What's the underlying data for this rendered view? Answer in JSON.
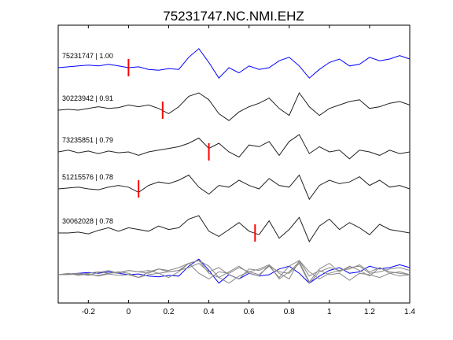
{
  "chart_data": {
    "type": "line",
    "title": "75231747.NC.NMI.EHZ",
    "xlabel": "",
    "ylabel": "",
    "xlim": [
      -0.35,
      1.4
    ],
    "x_ticks": [
      -0.2,
      0,
      0.2,
      0.4,
      0.6,
      0.8,
      1,
      1.2,
      1.4
    ],
    "x_tick_labels": [
      "-0.2",
      "0",
      "0.2",
      "0.4",
      "0.6",
      "0.8",
      "1",
      "1.2",
      "1.4"
    ],
    "grid": false,
    "colors": {
      "reference": "#0000ff",
      "trace": "#222222",
      "overlay": "#888888",
      "pick": "#ff0000"
    },
    "traces": [
      {
        "label": "75231747 | 1.00",
        "pick_time": 0.0,
        "color": "reference",
        "x": [
          -0.35,
          -0.3,
          -0.25,
          -0.2,
          -0.15,
          -0.1,
          -0.05,
          0.0,
          0.05,
          0.1,
          0.15,
          0.2,
          0.25,
          0.3,
          0.35,
          0.4,
          0.45,
          0.5,
          0.55,
          0.6,
          0.65,
          0.7,
          0.75,
          0.8,
          0.85,
          0.9,
          0.95,
          1.0,
          1.05,
          1.1,
          1.15,
          1.2,
          1.25,
          1.3,
          1.35,
          1.4
        ],
        "y": [
          0.0,
          0.05,
          0.1,
          0.15,
          0.1,
          0.2,
          0.1,
          0.0,
          0.05,
          -0.1,
          -0.15,
          -0.05,
          -0.1,
          0.6,
          1.1,
          0.3,
          -0.6,
          0.0,
          -0.3,
          0.1,
          -0.1,
          0.0,
          0.4,
          0.6,
          0.1,
          -0.6,
          -0.1,
          0.3,
          0.5,
          0.1,
          0.2,
          0.6,
          0.4,
          0.5,
          0.7,
          0.5
        ]
      },
      {
        "label": "30223942 | 0.91",
        "pick_time": 0.17,
        "color": "trace",
        "x": [
          -0.35,
          -0.3,
          -0.25,
          -0.2,
          -0.15,
          -0.1,
          -0.05,
          0.0,
          0.05,
          0.1,
          0.15,
          0.2,
          0.25,
          0.3,
          0.35,
          0.4,
          0.45,
          0.5,
          0.55,
          0.6,
          0.65,
          0.7,
          0.75,
          0.8,
          0.85,
          0.9,
          0.95,
          1.0,
          1.05,
          1.1,
          1.15,
          1.2,
          1.25,
          1.3,
          1.35,
          1.4
        ],
        "y": [
          0.0,
          0.05,
          0.0,
          0.1,
          0.2,
          0.1,
          0.15,
          0.3,
          0.2,
          0.3,
          0.1,
          -0.2,
          0.2,
          0.8,
          1.0,
          0.6,
          -0.2,
          -0.6,
          -0.1,
          0.2,
          0.4,
          0.7,
          0.1,
          -0.3,
          1.0,
          0.2,
          -0.3,
          0.1,
          0.3,
          0.5,
          0.6,
          0.1,
          0.2,
          0.4,
          0.5,
          0.3
        ]
      },
      {
        "label": "73235851 | 0.79",
        "pick_time": 0.4,
        "color": "trace",
        "x": [
          -0.35,
          -0.3,
          -0.25,
          -0.2,
          -0.15,
          -0.1,
          -0.05,
          0.0,
          0.05,
          0.1,
          0.15,
          0.2,
          0.25,
          0.3,
          0.35,
          0.4,
          0.45,
          0.5,
          0.55,
          0.6,
          0.65,
          0.7,
          0.75,
          0.8,
          0.85,
          0.9,
          0.95,
          1.0,
          1.05,
          1.1,
          1.15,
          1.2,
          1.25,
          1.3,
          1.35,
          1.4
        ],
        "y": [
          0.0,
          0.1,
          -0.05,
          0.05,
          -0.1,
          0.05,
          -0.05,
          0.0,
          -0.2,
          0.0,
          0.1,
          0.2,
          0.3,
          0.5,
          0.8,
          0.2,
          0.5,
          0.0,
          -0.3,
          0.4,
          0.3,
          0.6,
          -0.2,
          0.6,
          1.0,
          -0.1,
          0.3,
          0.0,
          0.1,
          -0.4,
          0.1,
          0.0,
          -0.2,
          0.1,
          -0.1,
          0.0
        ]
      },
      {
        "label": "51215576 | 0.78",
        "pick_time": 0.05,
        "color": "trace",
        "x": [
          -0.35,
          -0.3,
          -0.25,
          -0.2,
          -0.15,
          -0.1,
          -0.05,
          0.0,
          0.05,
          0.1,
          0.15,
          0.2,
          0.25,
          0.3,
          0.35,
          0.4,
          0.45,
          0.5,
          0.55,
          0.6,
          0.65,
          0.7,
          0.75,
          0.8,
          0.85,
          0.9,
          0.95,
          1.0,
          1.05,
          1.1,
          1.15,
          1.2,
          1.25,
          1.3,
          1.35,
          1.4
        ],
        "y": [
          0.0,
          0.05,
          0.1,
          0.0,
          -0.05,
          0.1,
          0.2,
          0.1,
          -0.2,
          0.2,
          0.4,
          0.3,
          0.5,
          0.8,
          0.1,
          -0.3,
          0.2,
          0.1,
          0.5,
          0.2,
          0.0,
          0.6,
          0.2,
          0.1,
          0.8,
          -0.6,
          0.2,
          0.5,
          0.3,
          0.4,
          0.7,
          0.2,
          0.5,
          0.1,
          0.2,
          0.0
        ]
      },
      {
        "label": "30062028 | 0.78",
        "pick_time": 0.63,
        "color": "trace",
        "x": [
          -0.35,
          -0.3,
          -0.25,
          -0.2,
          -0.15,
          -0.1,
          -0.05,
          0.0,
          0.05,
          0.1,
          0.15,
          0.2,
          0.25,
          0.3,
          0.35,
          0.4,
          0.45,
          0.5,
          0.55,
          0.6,
          0.65,
          0.7,
          0.75,
          0.8,
          0.85,
          0.9,
          0.95,
          1.0,
          1.05,
          1.1,
          1.15,
          1.2,
          1.25,
          1.3,
          1.35,
          1.4
        ],
        "y": [
          0.0,
          0.0,
          0.05,
          -0.05,
          0.15,
          0.3,
          0.1,
          0.3,
          0.2,
          0.1,
          0.4,
          0.2,
          0.3,
          0.8,
          1.0,
          0.1,
          -0.2,
          0.2,
          0.6,
          0.1,
          -0.1,
          0.7,
          -0.3,
          0.2,
          0.9,
          -0.5,
          0.4,
          0.8,
          0.2,
          0.6,
          0.3,
          -0.1,
          0.5,
          0.2,
          0.1,
          0.0
        ]
      }
    ]
  }
}
